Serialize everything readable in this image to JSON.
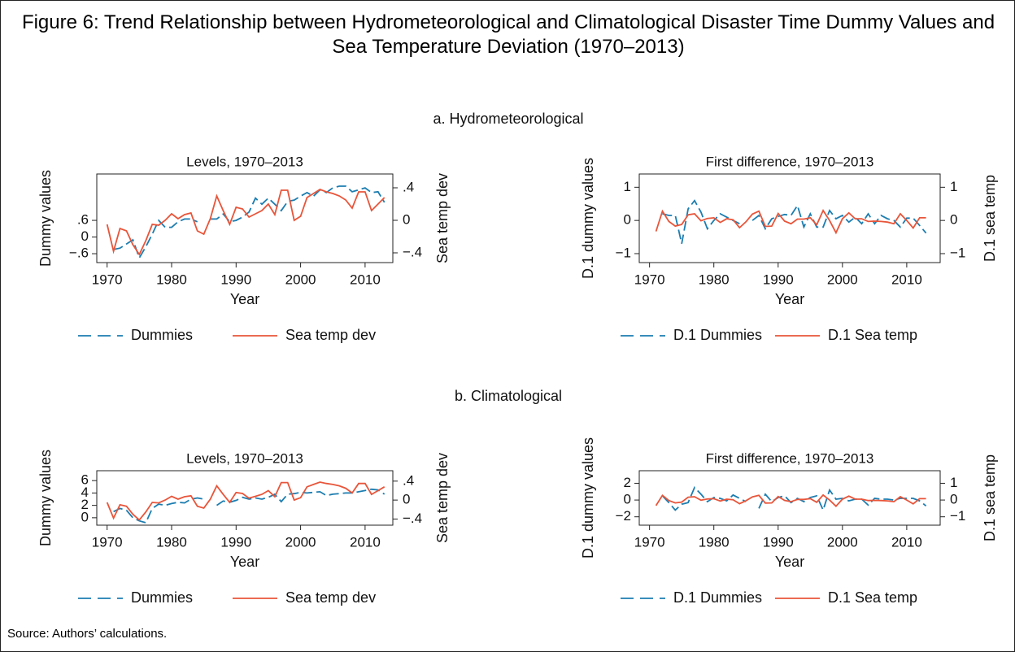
{
  "title": "Figure 6: Trend Relationship between Hydrometeorological and Climatological Disaster Time Dummy Values and Sea Temperature Deviation (1970–2013)",
  "panel_titles": [
    "a. Hydrometeorological",
    "b. Climatological"
  ],
  "source": "Source: Authors’ calculations.",
  "chart_data": [
    {
      "type": "line",
      "title": "Levels, 1970–2013",
      "xlabel": "Year",
      "ylabel": "Dummy values",
      "y2label": "Sea temp dev",
      "x": [
        1970,
        1971,
        1972,
        1973,
        1974,
        1975,
        1976,
        1977,
        1978,
        1979,
        1980,
        1981,
        1982,
        1983,
        1984,
        1985,
        1986,
        1987,
        1988,
        1989,
        1990,
        1991,
        1992,
        1993,
        1994,
        1995,
        1996,
        1997,
        1998,
        1999,
        2000,
        2001,
        2002,
        2003,
        2004,
        2005,
        2006,
        2007,
        2008,
        2009,
        2010,
        2011,
        2012,
        2013
      ],
      "xlim": [
        1968.4,
        2014.3
      ],
      "xticks": [
        1970,
        1980,
        1990,
        2000,
        2010
      ],
      "ylim": [
        -0.92,
        2.27
      ],
      "yticks": [
        {
          "value": -0.6,
          "label": "−.6"
        },
        0,
        {
          "value": 0.6,
          "label": ".6"
        }
      ],
      "y2lim": [
        -0.52,
        0.57
      ],
      "y2ticks": [
        {
          "value": -0.4,
          "label": "−.4"
        },
        0,
        {
          "value": 0.4,
          "label": ".4"
        }
      ],
      "series": [
        {
          "name": "Dummies",
          "color": "#1c7db0",
          "dashed": true,
          "values": [
            null,
            -0.45,
            -0.4,
            -0.25,
            -0.1,
            -0.75,
            -0.35,
            0.1,
            0.6,
            0.35,
            0.35,
            0.55,
            0.65,
            0.65,
            0.55,
            null,
            0.65,
            0.65,
            0.83,
            0.55,
            0.6,
            0.72,
            0.9,
            1.4,
            1.18,
            1.4,
            1.18,
            0.95,
            1.28,
            1.33,
            1.47,
            1.6,
            1.47,
            1.7,
            1.6,
            1.77,
            1.83,
            1.83,
            1.63,
            1.7,
            1.77,
            1.6,
            1.63,
            1.25
          ]
        },
        {
          "name": "Sea temp dev",
          "color": "#e8553a",
          "axis": "y2",
          "values": [
            -0.05,
            -0.38,
            -0.1,
            -0.13,
            -0.3,
            -0.42,
            -0.25,
            -0.05,
            -0.06,
            0,
            0.08,
            0.02,
            0.07,
            0.09,
            -0.13,
            -0.17,
            0.02,
            0.3,
            0.12,
            -0.05,
            0.16,
            0.14,
            0.04,
            0.08,
            0.12,
            0.2,
            0.07,
            0.37,
            0.37,
            0,
            0.05,
            0.28,
            0.33,
            0.38,
            0.35,
            0.33,
            0.3,
            0.25,
            0.15,
            0.35,
            0.35,
            0.12,
            0.2,
            0.28
          ]
        }
      ]
    },
    {
      "type": "line",
      "title": "First difference, 1970–2013",
      "xlabel": "Year",
      "ylabel": "D.1 dummy values",
      "y2label": "D.1 sea temp",
      "x": [
        1971,
        1972,
        1973,
        1974,
        1975,
        1976,
        1977,
        1978,
        1979,
        1980,
        1981,
        1982,
        1983,
        1984,
        1985,
        1986,
        1987,
        1988,
        1989,
        1990,
        1991,
        1992,
        1993,
        1994,
        1995,
        1996,
        1997,
        1998,
        1999,
        2000,
        2001,
        2002,
        2003,
        2004,
        2005,
        2006,
        2007,
        2008,
        2009,
        2010,
        2011,
        2012,
        2013
      ],
      "xlim": [
        1968.4,
        2015.2
      ],
      "xticks": [
        1970,
        1980,
        1990,
        2000,
        2010
      ],
      "ylim": [
        -1.27,
        1.4
      ],
      "yticks": [
        {
          "value": -1,
          "label": "−1"
        },
        0,
        1
      ],
      "y2lim": [
        -1.27,
        1.4
      ],
      "y2ticks": [
        {
          "value": -1,
          "label": "−1"
        },
        0,
        1
      ],
      "series": [
        {
          "name": "D.1 Dummies",
          "color": "#1c7db0",
          "dashed": true,
          "values": [
            null,
            0.2,
            0.15,
            0.15,
            -0.7,
            0.35,
            0.6,
            0.25,
            -0.25,
            0,
            0.2,
            0.1,
            0,
            -0.1,
            null,
            0,
            0.15,
            -0.25,
            0.05,
            0.12,
            0.18,
            0.15,
            0.45,
            -0.2,
            0.2,
            -0.2,
            -0.2,
            0.3,
            0.05,
            0.15,
            -0.05,
            0.1,
            -0.1,
            0.2,
            -0.1,
            0.15,
            0.05,
            0,
            -0.2,
            0.07,
            0.07,
            -0.15,
            -0.38
          ]
        },
        {
          "name": "D.1 Sea temp",
          "color": "#e8553a",
          "axis": "y2",
          "values": [
            -0.33,
            0.28,
            -0.03,
            -0.17,
            -0.12,
            0.17,
            0.2,
            -0.01,
            0.06,
            0.08,
            -0.06,
            0.05,
            0.02,
            -0.22,
            -0.04,
            0.19,
            0.28,
            -0.18,
            -0.17,
            0.21,
            -0.02,
            -0.1,
            0.04,
            0.04,
            0.08,
            -0.13,
            0.3,
            0,
            -0.37,
            0.05,
            0.23,
            0.05,
            0.05,
            -0.03,
            -0.02,
            -0.03,
            -0.05,
            -0.1,
            0.2,
            0,
            -0.23,
            0.08,
            0.08
          ]
        }
      ]
    },
    {
      "type": "line",
      "title": "Levels, 1970–2013",
      "xlabel": "Year",
      "ylabel": "Dummy values",
      "y2label": "Sea temp dev",
      "x": [
        1970,
        1971,
        1972,
        1973,
        1974,
        1975,
        1976,
        1977,
        1978,
        1979,
        1980,
        1981,
        1982,
        1983,
        1984,
        1985,
        1986,
        1987,
        1988,
        1989,
        1990,
        1991,
        1992,
        1993,
        1994,
        1995,
        1996,
        1997,
        1998,
        1999,
        2000,
        2001,
        2002,
        2003,
        2004,
        2005,
        2006,
        2007,
        2008,
        2009,
        2010,
        2011,
        2012,
        2013
      ],
      "xlim": [
        1968.4,
        2014.3
      ],
      "xticks": [
        1970,
        1980,
        1990,
        2000,
        2010
      ],
      "ylim": [
        -1.2,
        7.6
      ],
      "yticks": [
        0,
        2,
        4,
        6
      ],
      "y2lim": [
        -0.53,
        0.62
      ],
      "y2ticks": [
        {
          "value": -0.4,
          "label": "−.4"
        },
        0,
        {
          "value": 0.4,
          "label": ".4"
        }
      ],
      "series": [
        {
          "name": "Dummies",
          "color": "#1c7db0",
          "dashed": true,
          "values": [
            null,
            1,
            1.5,
            1.2,
            0,
            -0.5,
            -0.8,
            1.5,
            2.2,
            2,
            2.3,
            2.5,
            2.4,
            3,
            3.2,
            3,
            null,
            2,
            2.7,
            2.5,
            2.8,
            3.3,
            3,
            3.2,
            3,
            3.3,
            3.8,
            2.6,
            3.8,
            3.9,
            4.1,
            4,
            4.1,
            4.2,
            3.6,
            3.8,
            3.9,
            4,
            4,
            4.2,
            4.4,
            4.6,
            4.5,
            3.8
          ]
        },
        {
          "name": "Sea temp dev",
          "color": "#e8553a",
          "axis": "y2",
          "values": [
            -0.05,
            -0.38,
            -0.1,
            -0.13,
            -0.3,
            -0.42,
            -0.25,
            -0.05,
            -0.06,
            0,
            0.08,
            0.02,
            0.07,
            0.09,
            -0.13,
            -0.17,
            0.02,
            0.3,
            0.12,
            -0.05,
            0.16,
            0.14,
            0.04,
            0.08,
            0.12,
            0.2,
            0.07,
            0.37,
            0.37,
            0,
            0.05,
            0.28,
            0.33,
            0.38,
            0.35,
            0.33,
            0.3,
            0.25,
            0.15,
            0.35,
            0.35,
            0.12,
            0.2,
            0.28
          ]
        }
      ]
    },
    {
      "type": "line",
      "title": "First difference, 1970–2013",
      "xlabel": "Year",
      "ylabel": "D.1 dummy values",
      "y2label": "D.1 sea temp",
      "x": [
        1971,
        1972,
        1973,
        1974,
        1975,
        1976,
        1977,
        1978,
        1979,
        1980,
        1981,
        1982,
        1983,
        1984,
        1985,
        1986,
        1987,
        1988,
        1989,
        1990,
        1991,
        1992,
        1993,
        1994,
        1995,
        1996,
        1997,
        1998,
        1999,
        2000,
        2001,
        2002,
        2003,
        2004,
        2005,
        2006,
        2007,
        2008,
        2009,
        2010,
        2011,
        2012,
        2013
      ],
      "xlim": [
        1968.4,
        2015.2
      ],
      "xticks": [
        1970,
        1980,
        1990,
        2000,
        2010
      ],
      "ylim": [
        -3,
        3.5
      ],
      "yticks": [
        {
          "value": -2,
          "label": "−2"
        },
        0,
        2
      ],
      "y2lim": [
        -1.5,
        1.75
      ],
      "y2ticks": [
        {
          "value": -1,
          "label": "−1"
        },
        0,
        1
      ],
      "series": [
        {
          "name": "D.1 Dummies",
          "color": "#1c7db0",
          "dashed": true,
          "values": [
            null,
            0.5,
            -0.3,
            -1.2,
            -0.5,
            -0.3,
            1.5,
            0.7,
            -0.2,
            0.3,
            0.2,
            -0.1,
            0.6,
            0.2,
            -0.2,
            null,
            -1,
            0.7,
            -0.2,
            0.3,
            0.5,
            -0.3,
            0.2,
            -0.2,
            0.3,
            0.5,
            -1.2,
            1.2,
            0.1,
            0.2,
            -0.1,
            0.1,
            0.1,
            -0.6,
            0.2,
            0.1,
            0.1,
            0,
            0.2,
            0.2,
            0.2,
            -0.1,
            -0.7
          ]
        },
        {
          "name": "D.1 Sea temp",
          "color": "#e8553a",
          "axis": "y2",
          "values": [
            -0.33,
            0.28,
            -0.03,
            -0.17,
            -0.12,
            0.17,
            0.2,
            -0.01,
            0.06,
            0.08,
            -0.06,
            0.05,
            0.02,
            -0.22,
            -0.04,
            0.19,
            0.28,
            -0.18,
            -0.17,
            0.21,
            -0.02,
            -0.1,
            0.04,
            0.04,
            0.08,
            -0.13,
            0.3,
            0,
            -0.37,
            0.05,
            0.23,
            0.05,
            0.05,
            -0.03,
            -0.02,
            -0.03,
            -0.05,
            -0.1,
            0.2,
            0,
            -0.23,
            0.08,
            0.08
          ]
        }
      ]
    }
  ]
}
